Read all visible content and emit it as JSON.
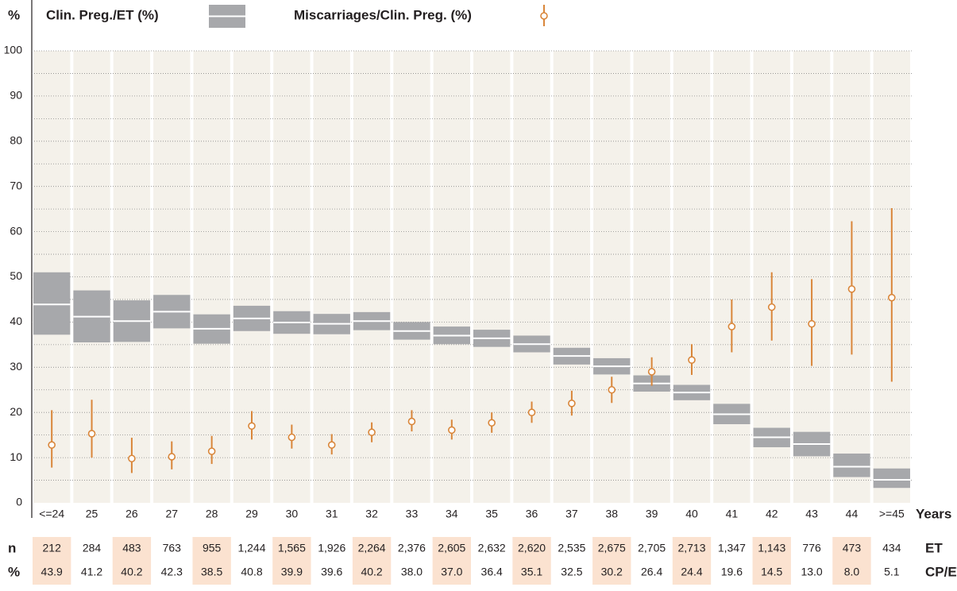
{
  "chart_data": {
    "type": "box_error",
    "y_label": "%",
    "x_label": "Years",
    "categories": [
      "<=24",
      "25",
      "26",
      "27",
      "28",
      "29",
      "30",
      "31",
      "32",
      "33",
      "34",
      "35",
      "36",
      "37",
      "38",
      "39",
      "40",
      "41",
      "42",
      "43",
      "44",
      ">=45"
    ],
    "ylim": [
      0,
      100
    ],
    "yticks": [
      0,
      10,
      20,
      30,
      40,
      50,
      60,
      70,
      80,
      90,
      100
    ],
    "minor_yticks": [
      5,
      15,
      25,
      35,
      45,
      55,
      65,
      75,
      85,
      95
    ],
    "grid": true,
    "series": [
      {
        "name": "Clin. Preg./ET (%)",
        "color": "#a7a8ab",
        "values": [
          43.9,
          41.2,
          40.2,
          42.3,
          38.5,
          40.8,
          39.9,
          39.6,
          40.2,
          38.0,
          37.0,
          36.4,
          35.1,
          32.5,
          30.2,
          26.4,
          24.4,
          19.6,
          14.5,
          13.0,
          8.0,
          5.1
        ],
        "value_labels": [
          "43.9",
          "41.2",
          "40.2",
          "42.3",
          "38.5",
          "40.8",
          "39.9",
          "39.6",
          "40.2",
          "38.0",
          "37.0",
          "36.4",
          "35.1",
          "32.5",
          "30.2",
          "26.4",
          "24.4",
          "19.6",
          "14.5",
          "13.0",
          "8.0",
          "5.1"
        ],
        "low": [
          37.2,
          35.5,
          35.6,
          38.6,
          35.2,
          38.0,
          37.4,
          37.3,
          38.2,
          36.1,
          35.1,
          34.5,
          33.3,
          30.6,
          28.4,
          24.6,
          22.7,
          17.4,
          12.3,
          10.3,
          5.7,
          3.3
        ],
        "high": [
          51.0,
          47.0,
          44.8,
          46.0,
          41.7,
          43.6,
          42.4,
          41.8,
          42.2,
          40.0,
          39.0,
          38.3,
          37.0,
          34.3,
          32.0,
          28.2,
          26.1,
          21.9,
          16.6,
          15.7,
          10.9,
          7.6
        ]
      },
      {
        "name": "Miscarriages/Clin. Preg. (%)",
        "color": "#d9863a",
        "values": [
          12.8,
          15.3,
          9.8,
          10.2,
          11.4,
          17.0,
          14.5,
          12.8,
          15.6,
          18.0,
          16.1,
          17.7,
          20.0,
          22.0,
          25.0,
          29.0,
          31.6,
          39.0,
          43.3,
          39.6,
          47.3,
          45.4
        ],
        "low": [
          7.8,
          10.0,
          6.6,
          7.4,
          8.6,
          14.0,
          12.0,
          10.7,
          13.4,
          15.8,
          14.0,
          15.5,
          17.7,
          19.3,
          22.1,
          25.9,
          28.3,
          33.3,
          35.9,
          30.3,
          32.8,
          26.8
        ],
        "high": [
          20.5,
          22.8,
          14.4,
          13.6,
          14.8,
          20.3,
          17.3,
          15.2,
          17.8,
          20.5,
          18.4,
          20.0,
          22.4,
          24.8,
          27.9,
          32.2,
          35.1,
          45.0,
          51.0,
          49.5,
          62.3,
          65.2
        ]
      }
    ],
    "table": {
      "n_label": "n",
      "n_unit": "ET",
      "pct_label": "%",
      "pct_unit": "CP/ET",
      "n": [
        "212",
        "284",
        "483",
        "763",
        "955",
        "1,244",
        "1,565",
        "1,926",
        "2,264",
        "2,376",
        "2,605",
        "2,632",
        "2,620",
        "2,535",
        "2,675",
        "2,705",
        "2,713",
        "1,347",
        "1,143",
        "776",
        "473",
        "434"
      ]
    }
  }
}
